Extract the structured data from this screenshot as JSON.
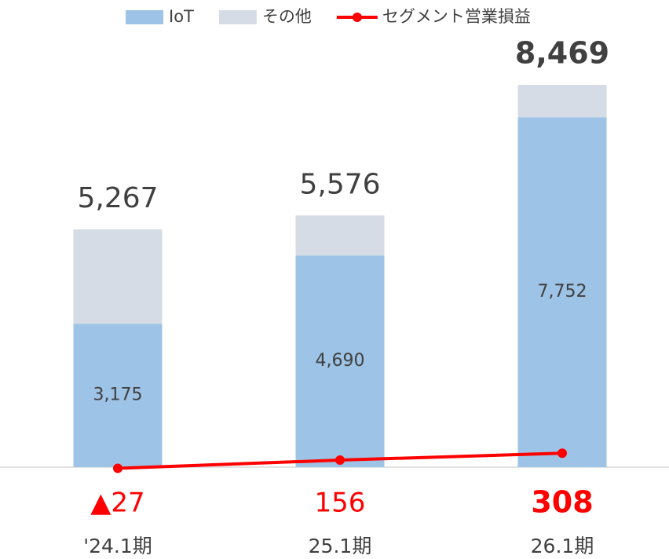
{
  "chart_data": {
    "type": "stacked_bar_line",
    "categories": [
      "'24.1期",
      "25.1期",
      "26.1期"
    ],
    "series": [
      {
        "name": "IoT",
        "type": "bar",
        "color": "#9dc3e6",
        "values": [
          3175,
          4690,
          7752
        ],
        "value_labels": [
          "3,175",
          "4,690",
          "7,752"
        ]
      },
      {
        "name": "その他",
        "type": "bar",
        "color": "#d6dce5",
        "values": [
          2092,
          886,
          717
        ]
      },
      {
        "name": "セグメント営業損益",
        "type": "line",
        "color": "#ff0000",
        "values": [
          -27,
          156,
          308
        ],
        "value_labels": [
          "▲27",
          "156",
          "308"
        ]
      }
    ],
    "totals": [
      5267,
      5576,
      8469
    ],
    "total_labels": [
      "5,267",
      "5,576",
      "8,469"
    ],
    "ylim": [
      -500,
      9000
    ],
    "legend": "top"
  }
}
